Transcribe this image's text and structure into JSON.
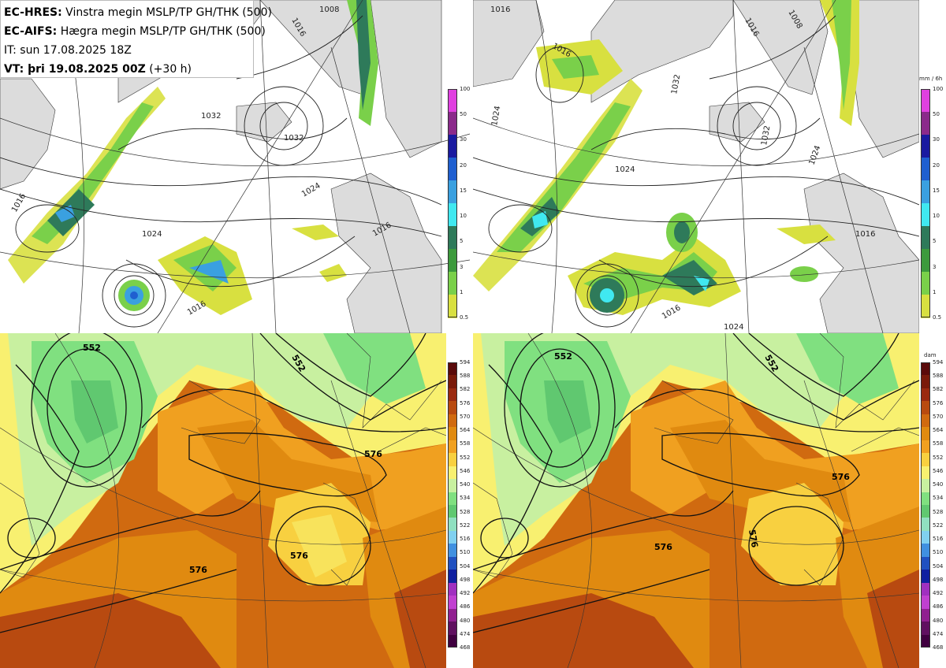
{
  "info": {
    "line1_model": "EC-HRES:",
    "line1_desc": "Vinstra megin MSLP/TP GH/THK (500)",
    "line2_model": "EC-AIFS:",
    "line2_desc": "Hægra megin MSLP/TP GH/THK (500)",
    "line3": "IT: sun 17.08.2025 18Z",
    "line4_label": "VT: þri 19.08.2025 00Z",
    "line4_extra": "(+30 h)"
  },
  "precip_colorbar": {
    "unit": "mm / 6h",
    "ticks": [
      "100",
      "50",
      "30",
      "20",
      "15",
      "10",
      "5",
      "3",
      "1",
      "0.5"
    ],
    "colors": [
      "#e040e0",
      "#8b2a8b",
      "#1a1aa0",
      "#1f5fd0",
      "#3aa0e0",
      "#40e8f0",
      "#2e7a5a",
      "#3c9a3c",
      "#7ad04a",
      "#d8e040"
    ]
  },
  "thk_colorbar": {
    "unit": "dam",
    "ticks": [
      "594",
      "588",
      "582",
      "576",
      "570",
      "564",
      "558",
      "552",
      "546",
      "540",
      "534",
      "528",
      "522",
      "516",
      "510",
      "504",
      "498",
      "492",
      "486",
      "480",
      "474",
      "468"
    ],
    "colors": [
      "#5a0a0a",
      "#7a1a0a",
      "#9a2a10",
      "#b84a10",
      "#d06a10",
      "#e08a10",
      "#f0a020",
      "#f8d040",
      "#f8f070",
      "#c8f0a0",
      "#80e080",
      "#60c870",
      "#90e0c0",
      "#80d0f0",
      "#4090e0",
      "#2050c0",
      "#1020a0",
      "#a030c0",
      "#c040d0",
      "#902090",
      "#601060",
      "#400040"
    ]
  },
  "mslp_labels": {
    "left": [
      "1016",
      "1008",
      "1024",
      "1032",
      "1032",
      "1024",
      "1016",
      "1016",
      "1016"
    ],
    "right": [
      "1016",
      "1016",
      "1008",
      "1024",
      "1032",
      "1024",
      "1032",
      "1024",
      "1016",
      "1016",
      "1016",
      "1024"
    ]
  },
  "gh_labels": {
    "left": [
      "552",
      "552",
      "576",
      "576",
      "576"
    ],
    "right": [
      "552",
      "552",
      "576",
      "576",
      "576"
    ]
  },
  "colors": {
    "land": "#dcdcdc",
    "sea": "#ffffff",
    "contour": "#222222",
    "grid": "#333333"
  }
}
